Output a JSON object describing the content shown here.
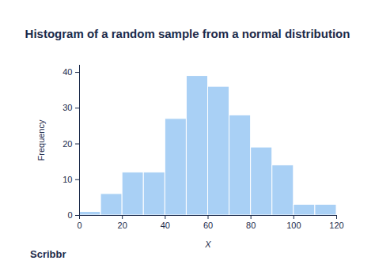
{
  "chart_data": {
    "type": "histogram",
    "title": "Histogram of a random sample from a normal distribution",
    "x_label": "X",
    "y_label": "Frequency",
    "caption": "Scribbr",
    "bins": [
      0,
      10,
      20,
      30,
      40,
      50,
      60,
      70,
      80,
      90,
      100,
      110,
      120
    ],
    "values": [
      1,
      6,
      12,
      12,
      27,
      39,
      36,
      28,
      19,
      14,
      3,
      3
    ],
    "color": "#a9d0f5",
    "xlim": [
      0,
      120
    ],
    "xticks": [
      0,
      20,
      40,
      60,
      80,
      100,
      120
    ],
    "ylim": [
      0,
      42
    ],
    "yticks": [
      0,
      10,
      20,
      30,
      40
    ],
    "grid": false
  }
}
